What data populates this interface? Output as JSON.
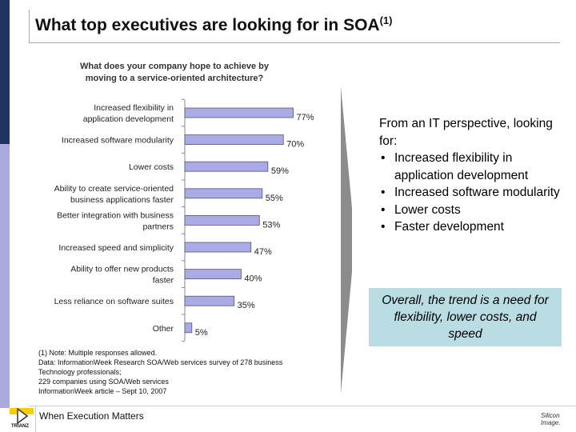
{
  "slide": {
    "title": "What top executives are looking for in SOA",
    "title_sup": "(1)",
    "footer_text": "When Execution Matters",
    "left_logo_text": "TRIANZ",
    "right_logo_line1": "Silicon",
    "right_logo_line2": "Image."
  },
  "chart_data": {
    "type": "bar",
    "orientation": "horizontal",
    "title": [
      "What does your company hope to achieve by",
      "moving to a service-oriented architecture?"
    ],
    "categories": [
      [
        "Increased flexibility in",
        "application development"
      ],
      [
        "Increased software modularity"
      ],
      [
        "Lower costs"
      ],
      [
        "Ability to create service-oriented",
        "business applications faster"
      ],
      [
        "Better integration with business",
        "partners"
      ],
      [
        "Increased speed and simplicity"
      ],
      [
        "Ability to offer new products",
        "faster"
      ],
      [
        "Less reliance on software suites"
      ],
      [
        "Other"
      ]
    ],
    "values": [
      77,
      70,
      59,
      55,
      53,
      47,
      40,
      35,
      5
    ],
    "data_labels": [
      "77%",
      "70%",
      "59%",
      "55%",
      "53%",
      "47%",
      "40%",
      "35%",
      "5%"
    ],
    "unit": "%",
    "xlim": [
      0,
      100
    ],
    "bar_color": "#aaaae6",
    "bar_edge": "#555577"
  },
  "it_perspective": {
    "intro": "From an IT perspective, looking for:",
    "bullets": [
      "Increased flexibility in application development",
      "Increased software modularity",
      "Lower costs",
      "Faster development"
    ]
  },
  "callout": {
    "text": "Overall, the trend is a need for flexibility, lower costs, and speed"
  },
  "notes": [
    "(1) Note: Multiple responses allowed.",
    "Data: InformationWeek Research SOA/Web services survey of 278 business",
    "Technology professionals;",
    "229 companies using SOA/Web services",
    "InformationWeek article – Sept 10, 2007"
  ],
  "colors": {
    "sidebar_dark": "#1f3561",
    "sidebar_light": "#aaaadd",
    "callout_bg": "#b9dde2",
    "arrow": "#8c8c8c"
  }
}
